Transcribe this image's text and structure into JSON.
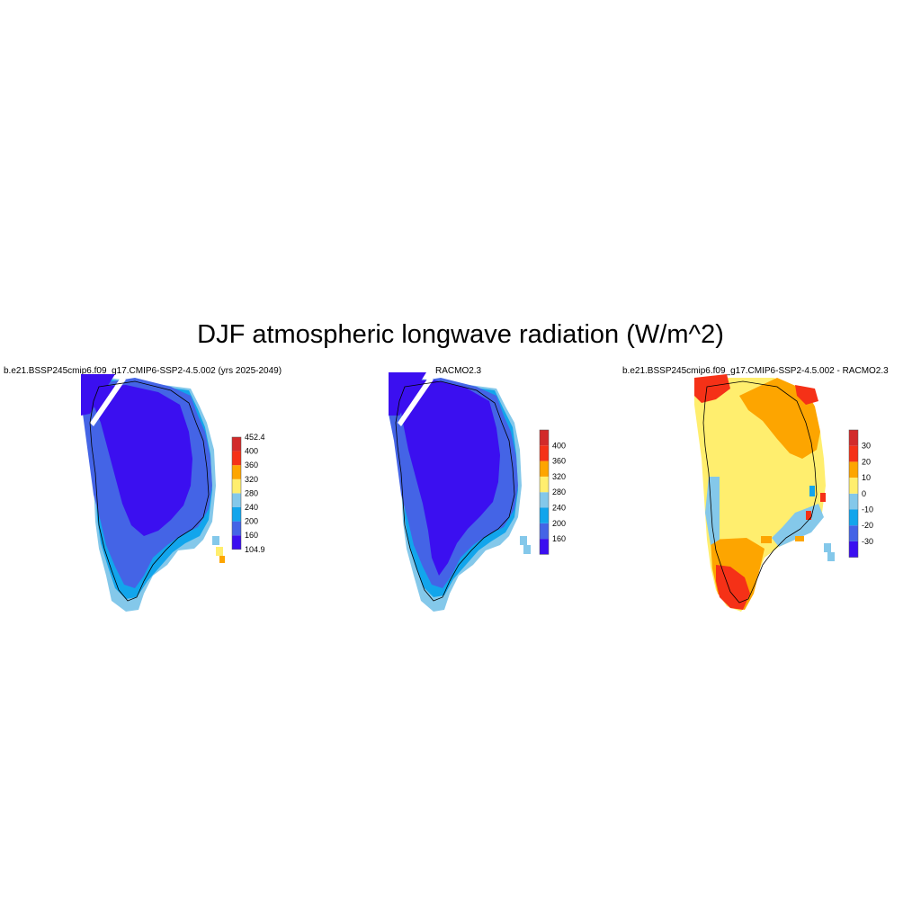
{
  "title": "DJF atmospheric longwave radiation (W/m^2)",
  "panels": [
    {
      "title": "b.e21.BSSP245cmip6.f09_g17.CMIP6-SSP2-4.5.002 (yrs 2025-2049)",
      "colorbar": {
        "colors": [
          "#3b0ff0",
          "#4464e6",
          "#12a5ec",
          "#84c8ea",
          "#ffee6e",
          "#fda500",
          "#f53117",
          "#d22a2a"
        ],
        "labels": [
          "104.9",
          "160",
          "200",
          "240",
          "280",
          "320",
          "360",
          "400",
          "452.4"
        ]
      }
    },
    {
      "title": "RACMO2.3",
      "colorbar": {
        "colors": [
          "#3b0ff0",
          "#4464e6",
          "#12a5ec",
          "#84c8ea",
          "#ffee6e",
          "#fda500",
          "#f53117",
          "#d22a2a"
        ],
        "labels": [
          "160",
          "200",
          "240",
          "280",
          "320",
          "360",
          "400"
        ]
      }
    },
    {
      "title": "b.e21.BSSP245cmip6.f09_g17.CMIP6-SSP2-4.5.002 - RACMO2.3",
      "colorbar": {
        "colors": [
          "#3b0ff0",
          "#4464e6",
          "#12a5ec",
          "#84c8ea",
          "#ffee6e",
          "#fda500",
          "#f53117",
          "#d22a2a"
        ],
        "labels": [
          "-30",
          "-20",
          "-10",
          "0",
          "10",
          "20",
          "30"
        ]
      }
    }
  ]
}
